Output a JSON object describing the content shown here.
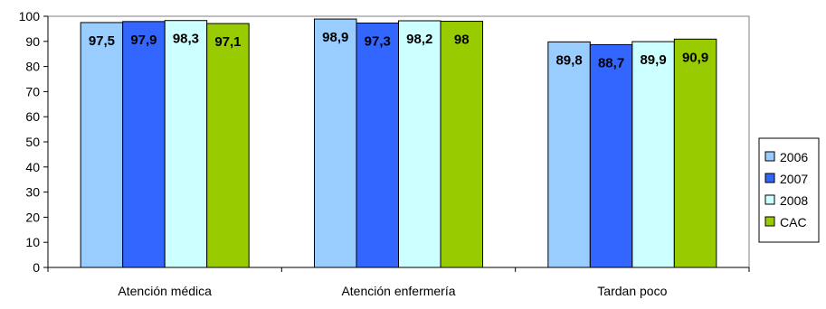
{
  "chart_data": {
    "type": "bar",
    "categories": [
      "Atención médica",
      "Atención enfermería",
      "Tardan poco"
    ],
    "series": [
      {
        "name": "2006",
        "values": [
          97.5,
          98.9,
          89.8
        ],
        "color": "#99CCFF"
      },
      {
        "name": "2007",
        "values": [
          97.9,
          97.3,
          88.7
        ],
        "color": "#3366FF"
      },
      {
        "name": "2008",
        "values": [
          98.3,
          98.2,
          89.9
        ],
        "color": "#CCFFFF"
      },
      {
        "name": "CAC",
        "values": [
          97.1,
          98,
          90.9
        ],
        "color": "#99CC00"
      }
    ],
    "data_labels": [
      [
        "97,5",
        "98,9",
        "89,8"
      ],
      [
        "97,9",
        "97,3",
        "88,7"
      ],
      [
        "98,3",
        "98,2",
        "89,9"
      ],
      [
        "97,1",
        "98",
        "90,9"
      ]
    ],
    "y_ticks": [
      "0",
      "10",
      "20",
      "30",
      "40",
      "50",
      "60",
      "70",
      "80",
      "90",
      "100"
    ],
    "ylim": [
      0,
      100
    ],
    "grid": false,
    "legend_position": "right",
    "title": "",
    "xlabel": "",
    "ylabel": ""
  }
}
